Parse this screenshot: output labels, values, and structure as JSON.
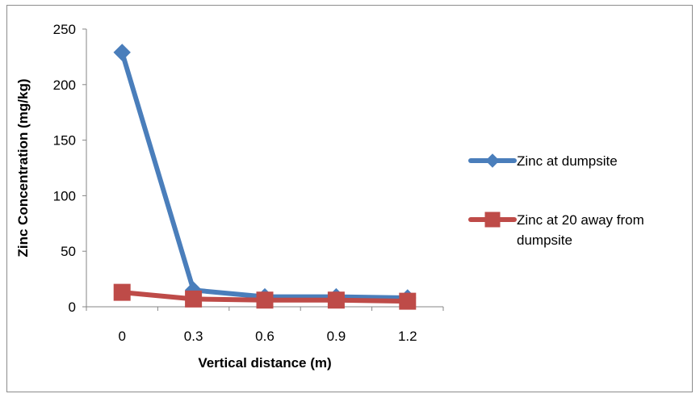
{
  "chart_data": {
    "type": "line",
    "title": "",
    "xlabel": "Vertical distance (m)",
    "ylabel": "Zinc Concentration (mg/kg)",
    "categories": [
      "0",
      "0.3",
      "0.6",
      "0.9",
      "1.2"
    ],
    "ylim": [
      0,
      250
    ],
    "yticks": [
      0,
      50,
      100,
      150,
      200,
      250
    ],
    "grid": false,
    "legend_position": "right",
    "series": [
      {
        "name": "Zinc at dumpsite",
        "name_lines": [
          "Zinc at dumpsite"
        ],
        "values": [
          229,
          15,
          9,
          9,
          8
        ],
        "color": "#4a7ebb",
        "marker": "diamond"
      },
      {
        "name": "Zinc at 20 away from dumpsite",
        "name_lines": [
          "Zinc at 20 away from",
          "dumpsite"
        ],
        "values": [
          13,
          7,
          6,
          6,
          5
        ],
        "color": "#be4b48",
        "marker": "square"
      }
    ]
  }
}
